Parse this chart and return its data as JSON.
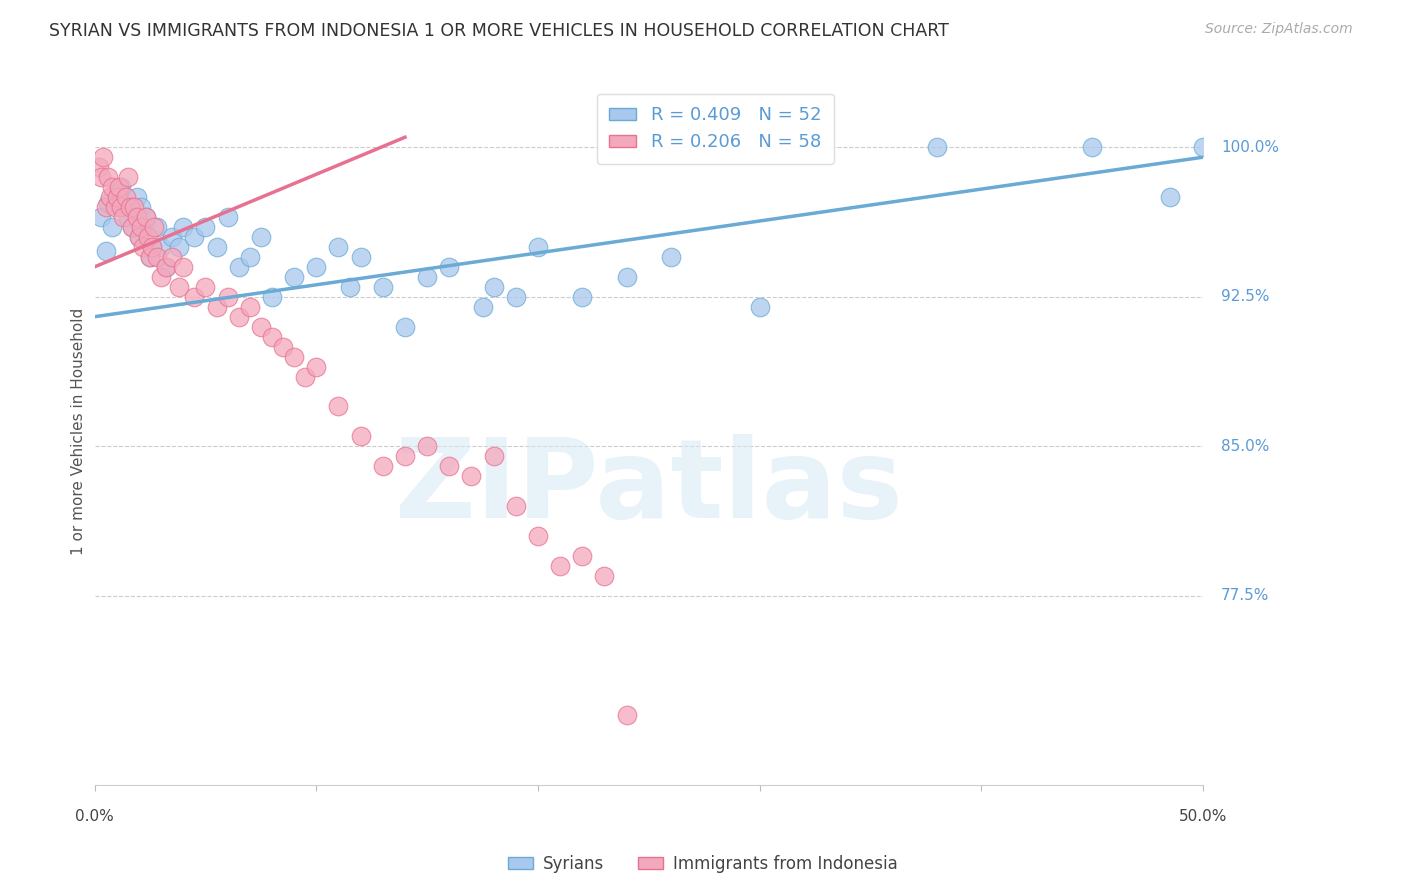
{
  "title": "SYRIAN VS IMMIGRANTS FROM INDONESIA 1 OR MORE VEHICLES IN HOUSEHOLD CORRELATION CHART",
  "source": "Source: ZipAtlas.com",
  "ylabel": "1 or more Vehicles in Household",
  "ytick_labels": [
    "77.5%",
    "85.0%",
    "92.5%",
    "100.0%"
  ],
  "ytick_values": [
    77.5,
    85.0,
    92.5,
    100.0
  ],
  "xlim": [
    0.0,
    50.0
  ],
  "ylim": [
    68.0,
    103.5
  ],
  "legend_label1": "R = 0.409   N = 52",
  "legend_label2": "R = 0.206   N = 58",
  "legend_entry1": "Syrians",
  "legend_entry2": "Immigrants from Indonesia",
  "watermark": "ZIPatlas",
  "blue_color": "#A8C8ED",
  "pink_color": "#F4A8BC",
  "blue_edge_color": "#6AAAD4",
  "pink_edge_color": "#E87090",
  "blue_line_color": "#6AAAD4",
  "pink_line_color": "#E87090",
  "syrians_x": [
    0.3,
    0.5,
    0.6,
    0.8,
    1.0,
    1.1,
    1.2,
    1.3,
    1.5,
    1.7,
    1.9,
    2.0,
    2.1,
    2.2,
    2.3,
    2.5,
    2.6,
    2.8,
    3.0,
    3.2,
    3.5,
    3.8,
    4.0,
    4.5,
    5.0,
    5.5,
    6.0,
    6.5,
    7.0,
    7.5,
    8.0,
    9.0,
    10.0,
    11.0,
    11.5,
    12.0,
    13.0,
    14.0,
    15.0,
    16.0,
    17.5,
    18.0,
    19.0,
    20.0,
    22.0,
    24.0,
    26.0,
    30.0,
    38.0,
    45.0,
    48.5,
    50.0
  ],
  "syrians_y": [
    96.5,
    94.8,
    97.2,
    96.0,
    97.5,
    97.8,
    98.0,
    97.0,
    96.5,
    96.0,
    97.5,
    95.5,
    97.0,
    96.0,
    96.5,
    94.5,
    95.0,
    96.0,
    95.0,
    94.0,
    95.5,
    95.0,
    96.0,
    95.5,
    96.0,
    95.0,
    96.5,
    94.0,
    94.5,
    95.5,
    92.5,
    93.5,
    94.0,
    95.0,
    93.0,
    94.5,
    93.0,
    91.0,
    93.5,
    94.0,
    92.0,
    93.0,
    92.5,
    95.0,
    92.5,
    93.5,
    94.5,
    92.0,
    100.0,
    100.0,
    97.5,
    100.0
  ],
  "indonesia_x": [
    0.2,
    0.3,
    0.4,
    0.5,
    0.6,
    0.7,
    0.8,
    0.9,
    1.0,
    1.1,
    1.2,
    1.3,
    1.4,
    1.5,
    1.6,
    1.7,
    1.8,
    1.9,
    2.0,
    2.1,
    2.2,
    2.3,
    2.4,
    2.5,
    2.6,
    2.7,
    2.8,
    3.0,
    3.2,
    3.5,
    3.8,
    4.0,
    4.5,
    5.0,
    5.5,
    6.0,
    6.5,
    7.0,
    7.5,
    8.0,
    8.5,
    9.0,
    9.5,
    10.0,
    11.0,
    12.0,
    13.0,
    14.0,
    15.0,
    16.0,
    17.0,
    18.0,
    19.0,
    20.0,
    21.0,
    22.0,
    23.0,
    24.0
  ],
  "indonesia_y": [
    99.0,
    98.5,
    99.5,
    97.0,
    98.5,
    97.5,
    98.0,
    97.0,
    97.5,
    98.0,
    97.0,
    96.5,
    97.5,
    98.5,
    97.0,
    96.0,
    97.0,
    96.5,
    95.5,
    96.0,
    95.0,
    96.5,
    95.5,
    94.5,
    95.0,
    96.0,
    94.5,
    93.5,
    94.0,
    94.5,
    93.0,
    94.0,
    92.5,
    93.0,
    92.0,
    92.5,
    91.5,
    92.0,
    91.0,
    90.5,
    90.0,
    89.5,
    88.5,
    89.0,
    87.0,
    85.5,
    84.0,
    84.5,
    85.0,
    84.0,
    83.5,
    84.5,
    82.0,
    80.5,
    79.0,
    79.5,
    78.5,
    71.5
  ],
  "blue_trend_x0": 0.0,
  "blue_trend_x1": 50.0,
  "blue_trend_y0": 91.5,
  "blue_trend_y1": 99.5,
  "pink_trend_x0": 0.0,
  "pink_trend_x1": 14.0,
  "pink_trend_y0": 94.0,
  "pink_trend_y1": 100.5
}
